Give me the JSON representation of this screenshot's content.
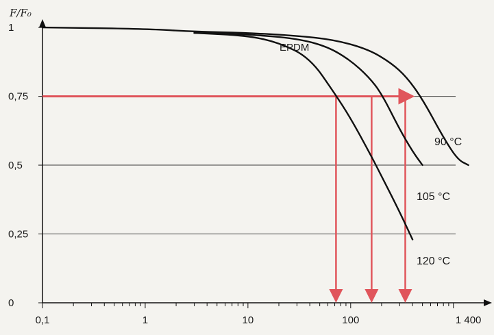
{
  "chart_data": {
    "type": "line",
    "title": "EPDM",
    "ylabel": "F/F₀",
    "xlabel": "",
    "x_scale": "log",
    "xlim": [
      0.1,
      1800
    ],
    "ylim": [
      0,
      1.05
    ],
    "x_ticks": [
      {
        "value": 0.1,
        "label": "0,1"
      },
      {
        "value": 1,
        "label": "1"
      },
      {
        "value": 10,
        "label": "10"
      },
      {
        "value": 100,
        "label": "100"
      },
      {
        "value": 1400,
        "label": "1 400"
      }
    ],
    "y_ticks": [
      {
        "value": 0,
        "label": "0"
      },
      {
        "value": 0.25,
        "label": "0,25"
      },
      {
        "value": 0.5,
        "label": "0,5"
      },
      {
        "value": 0.75,
        "label": "0,75"
      },
      {
        "value": 1,
        "label": "1"
      }
    ],
    "gridlines_y": [
      0.25,
      0.5,
      0.75
    ],
    "series": [
      {
        "name": "90 °C",
        "x": [
          0.1,
          1,
          3,
          10,
          30,
          70,
          150,
          250,
          350,
          500,
          800,
          1100,
          1400
        ],
        "y": [
          1.0,
          0.995,
          0.985,
          0.98,
          0.97,
          0.955,
          0.92,
          0.87,
          0.82,
          0.74,
          0.6,
          0.52,
          0.5
        ]
      },
      {
        "name": "105 °C",
        "x": [
          3,
          10,
          30,
          60,
          100,
          150,
          200,
          300,
          400,
          500
        ],
        "y": [
          0.98,
          0.975,
          0.96,
          0.93,
          0.88,
          0.82,
          0.76,
          0.63,
          0.55,
          0.5
        ]
      },
      {
        "name": "120 °C",
        "x": [
          3,
          10,
          20,
          40,
          70,
          100,
          150,
          200,
          300,
          400
        ],
        "y": [
          0.98,
          0.97,
          0.945,
          0.89,
          0.76,
          0.67,
          0.55,
          0.46,
          0.33,
          0.23
        ]
      }
    ],
    "threshold_line": {
      "y": 0.75,
      "x_start": 0.1,
      "x_end": 350
    },
    "threshold_arrows": [
      {
        "x": 72,
        "from_y": 0.75,
        "to_y": 0
      }
    ],
    "threshold_arrows_extra": [
      {
        "x": 160,
        "from_y": 0.75,
        "to_y": 0
      },
      {
        "x": 340,
        "from_y": 0.75,
        "to_y": 0
      }
    ],
    "colors": {
      "curve": "#111111",
      "threshold": "#e0555b",
      "grid": "#3a3a3a",
      "axis": "#111111",
      "background": "#f4f3ef"
    }
  }
}
